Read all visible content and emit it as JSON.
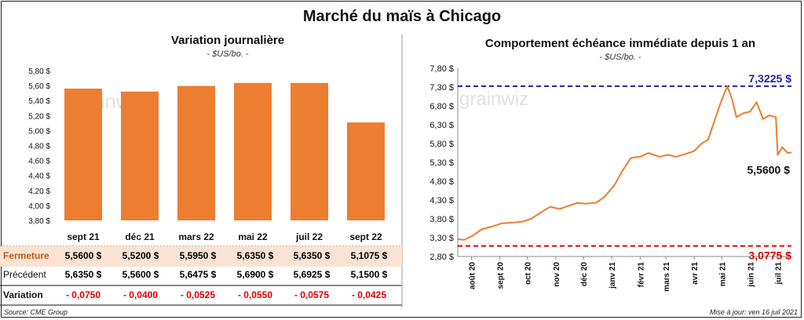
{
  "title": "Marché du maïs à Chicago",
  "watermark": "grainwiz",
  "colors": {
    "bar": "#ED7D31",
    "line": "#ED7D31",
    "high": "#1F1FB5",
    "low": "#E00000",
    "negative": "#E00000",
    "ferm_bg": "#FBE3D3"
  },
  "chart_data": [
    {
      "type": "bar",
      "title": "Variation journalière",
      "subtitle": "- $US/bo. -",
      "categories": [
        "sept 21",
        "déc 21",
        "mars 22",
        "mai 22",
        "juil 22",
        "sept 22"
      ],
      "values": [
        5.56,
        5.52,
        5.595,
        5.635,
        5.635,
        5.1075
      ],
      "ylim": [
        3.8,
        5.8
      ],
      "yticks": [
        "5,80 $",
        "5,60 $",
        "5,40 $",
        "5,20 $",
        "5,00 $",
        "4,80 $",
        "4,60 $",
        "4,40 $",
        "4,20 $",
        "4,00 $",
        "3,80 $"
      ]
    },
    {
      "type": "line",
      "title": "Comportement échéance immédiate depuis 1 an",
      "subtitle": "- $US/bo. -",
      "ylim": [
        2.8,
        7.8
      ],
      "yticks": [
        "7,80 $",
        "7,30 $",
        "6,80 $",
        "6,30 $",
        "5,80 $",
        "5,30 $",
        "4,80 $",
        "4,30 $",
        "3,80 $",
        "3,30 $",
        "2,80 $"
      ],
      "xticks": [
        "août 20",
        "sept 20",
        "oct 20",
        "nov 20",
        "déc 20",
        "janv 21",
        "févr 21",
        "mars 21",
        "avr 21",
        "mai 21",
        "juin 21",
        "juil 21"
      ],
      "high": 7.3225,
      "high_label": "7,3225 $",
      "low": 3.0775,
      "low_label": "3,0775 $",
      "last_label": "5,5600 $",
      "series": [
        {
          "points": [
            [
              "2020-07-17",
              3.26
            ],
            [
              "2020-07-24",
              3.24
            ],
            [
              "2020-08-03",
              3.36
            ],
            [
              "2020-08-12",
              3.52
            ],
            [
              "2020-08-24",
              3.6
            ],
            [
              "2020-09-03",
              3.68
            ],
            [
              "2020-09-15",
              3.7
            ],
            [
              "2020-09-25",
              3.72
            ],
            [
              "2020-10-05",
              3.8
            ],
            [
              "2020-10-15",
              3.96
            ],
            [
              "2020-10-26",
              4.12
            ],
            [
              "2020-11-05",
              4.06
            ],
            [
              "2020-11-13",
              4.13
            ],
            [
              "2020-11-24",
              4.22
            ],
            [
              "2020-12-04",
              4.2
            ],
            [
              "2020-12-15",
              4.23
            ],
            [
              "2020-12-24",
              4.38
            ],
            [
              "2021-01-04",
              4.7
            ],
            [
              "2021-01-12",
              5.05
            ],
            [
              "2021-01-22",
              5.42
            ],
            [
              "2021-02-01",
              5.45
            ],
            [
              "2021-02-10",
              5.55
            ],
            [
              "2021-02-22",
              5.45
            ],
            [
              "2021-03-03",
              5.5
            ],
            [
              "2021-03-12",
              5.45
            ],
            [
              "2021-03-22",
              5.52
            ],
            [
              "2021-04-01",
              5.6
            ],
            [
              "2021-04-09",
              5.8
            ],
            [
              "2021-04-16",
              5.9
            ],
            [
              "2021-04-23",
              6.4
            ],
            [
              "2021-04-30",
              6.9
            ],
            [
              "2021-05-07",
              7.32
            ],
            [
              "2021-05-12",
              7.0
            ],
            [
              "2021-05-17",
              6.5
            ],
            [
              "2021-05-24",
              6.6
            ],
            [
              "2021-06-01",
              6.65
            ],
            [
              "2021-06-08",
              6.9
            ],
            [
              "2021-06-15",
              6.45
            ],
            [
              "2021-06-22",
              6.55
            ],
            [
              "2021-06-29",
              6.5
            ],
            [
              "2021-07-01",
              5.5
            ],
            [
              "2021-07-06",
              5.7
            ],
            [
              "2021-07-12",
              5.55
            ],
            [
              "2021-07-16",
              5.56
            ]
          ]
        }
      ]
    }
  ],
  "table": {
    "rows": [
      {
        "label": "Fermeture",
        "values": [
          "5,5600  $",
          "5,5200  $",
          "5,5950  $",
          "5,6350  $",
          "5,6350  $",
          "5,1075  $"
        ]
      },
      {
        "label": "Précédent",
        "values": [
          "5,6350  $",
          "5,5600  $",
          "5,6475  $",
          "5,6900  $",
          "5,6925  $",
          "5,1500  $"
        ]
      },
      {
        "label": "Variation",
        "values": [
          "- 0,0750",
          "- 0,0400",
          "- 0,0525",
          "- 0,0550",
          "- 0,0575",
          "- 0,0425"
        ]
      }
    ]
  },
  "footer": {
    "source": "Source: CME Group",
    "updated": "Mise à jour: ven 16 juil 2021"
  }
}
